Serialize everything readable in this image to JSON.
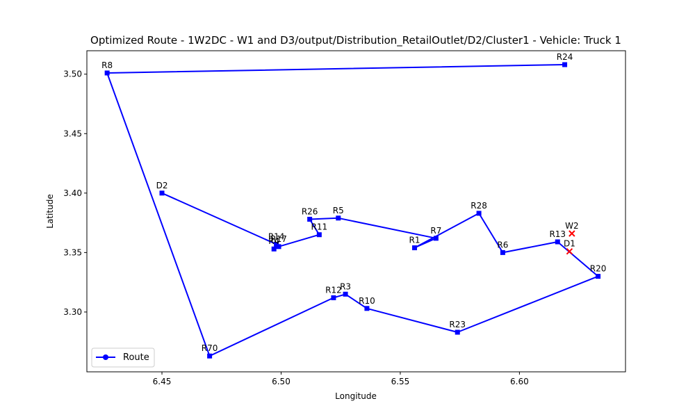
{
  "chart_data": {
    "type": "line",
    "title": "Optimized Route - 1W2DC - W1 and D3/output/Distribution_RetailOutlet/D2/Cluster1 - Vehicle: Truck 1",
    "xlabel": "Longitude",
    "ylabel": "Latitude",
    "xlim": [
      6.4185,
      6.6445
    ],
    "ylim": [
      3.2497,
      3.5197
    ],
    "xticks": [
      {
        "value": 6.45,
        "label": "6.45"
      },
      {
        "value": 6.5,
        "label": "6.50"
      },
      {
        "value": 6.55,
        "label": "6.55"
      },
      {
        "value": 6.6,
        "label": "6.60"
      }
    ],
    "yticks": [
      {
        "value": 3.3,
        "label": "3.30"
      },
      {
        "value": 3.35,
        "label": "3.35"
      },
      {
        "value": 3.4,
        "label": "3.40"
      },
      {
        "value": 3.45,
        "label": "3.45"
      },
      {
        "value": 3.5,
        "label": "3.50"
      }
    ],
    "grid": false,
    "legend": {
      "position": "lower-left",
      "entries": [
        {
          "label": "Route",
          "color": "#0000ff"
        }
      ]
    },
    "series": [
      {
        "name": "Route",
        "color": "#0000ff",
        "points": [
          {
            "id": "D2",
            "x": 6.45,
            "y": 3.4
          },
          {
            "id": "R14",
            "x": 6.498,
            "y": 3.357
          },
          {
            "id": "R4",
            "x": 6.497,
            "y": 3.353
          },
          {
            "id": "R17",
            "x": 6.499,
            "y": 3.355
          },
          {
            "id": "R11",
            "x": 6.516,
            "y": 3.365
          },
          {
            "id": "R26",
            "x": 6.512,
            "y": 3.378
          },
          {
            "id": "R5",
            "x": 6.524,
            "y": 3.379
          },
          {
            "id": "R7",
            "x": 6.565,
            "y": 3.362
          },
          {
            "id": "R1",
            "x": 6.556,
            "y": 3.354
          },
          {
            "id": "R28",
            "x": 6.583,
            "y": 3.383
          },
          {
            "id": "R6",
            "x": 6.593,
            "y": 3.35
          },
          {
            "id": "R13",
            "x": 6.616,
            "y": 3.359
          },
          {
            "id": "R20",
            "x": 6.633,
            "y": 3.33
          },
          {
            "id": "R23",
            "x": 6.574,
            "y": 3.283
          },
          {
            "id": "R10",
            "x": 6.536,
            "y": 3.303
          },
          {
            "id": "R3",
            "x": 6.527,
            "y": 3.315
          },
          {
            "id": "R12",
            "x": 6.522,
            "y": 3.312
          },
          {
            "id": "R70",
            "x": 6.47,
            "y": 3.263
          },
          {
            "id": "R8",
            "x": 6.427,
            "y": 3.501
          },
          {
            "id": "R24",
            "x": 6.619,
            "y": 3.508
          }
        ]
      }
    ],
    "markers": [
      {
        "id": "W2",
        "x": 6.622,
        "y": 3.366,
        "color": "#ff0000",
        "shape": "x"
      },
      {
        "id": "D1",
        "x": 6.621,
        "y": 3.351,
        "color": "#ff0000",
        "shape": "x"
      }
    ]
  }
}
